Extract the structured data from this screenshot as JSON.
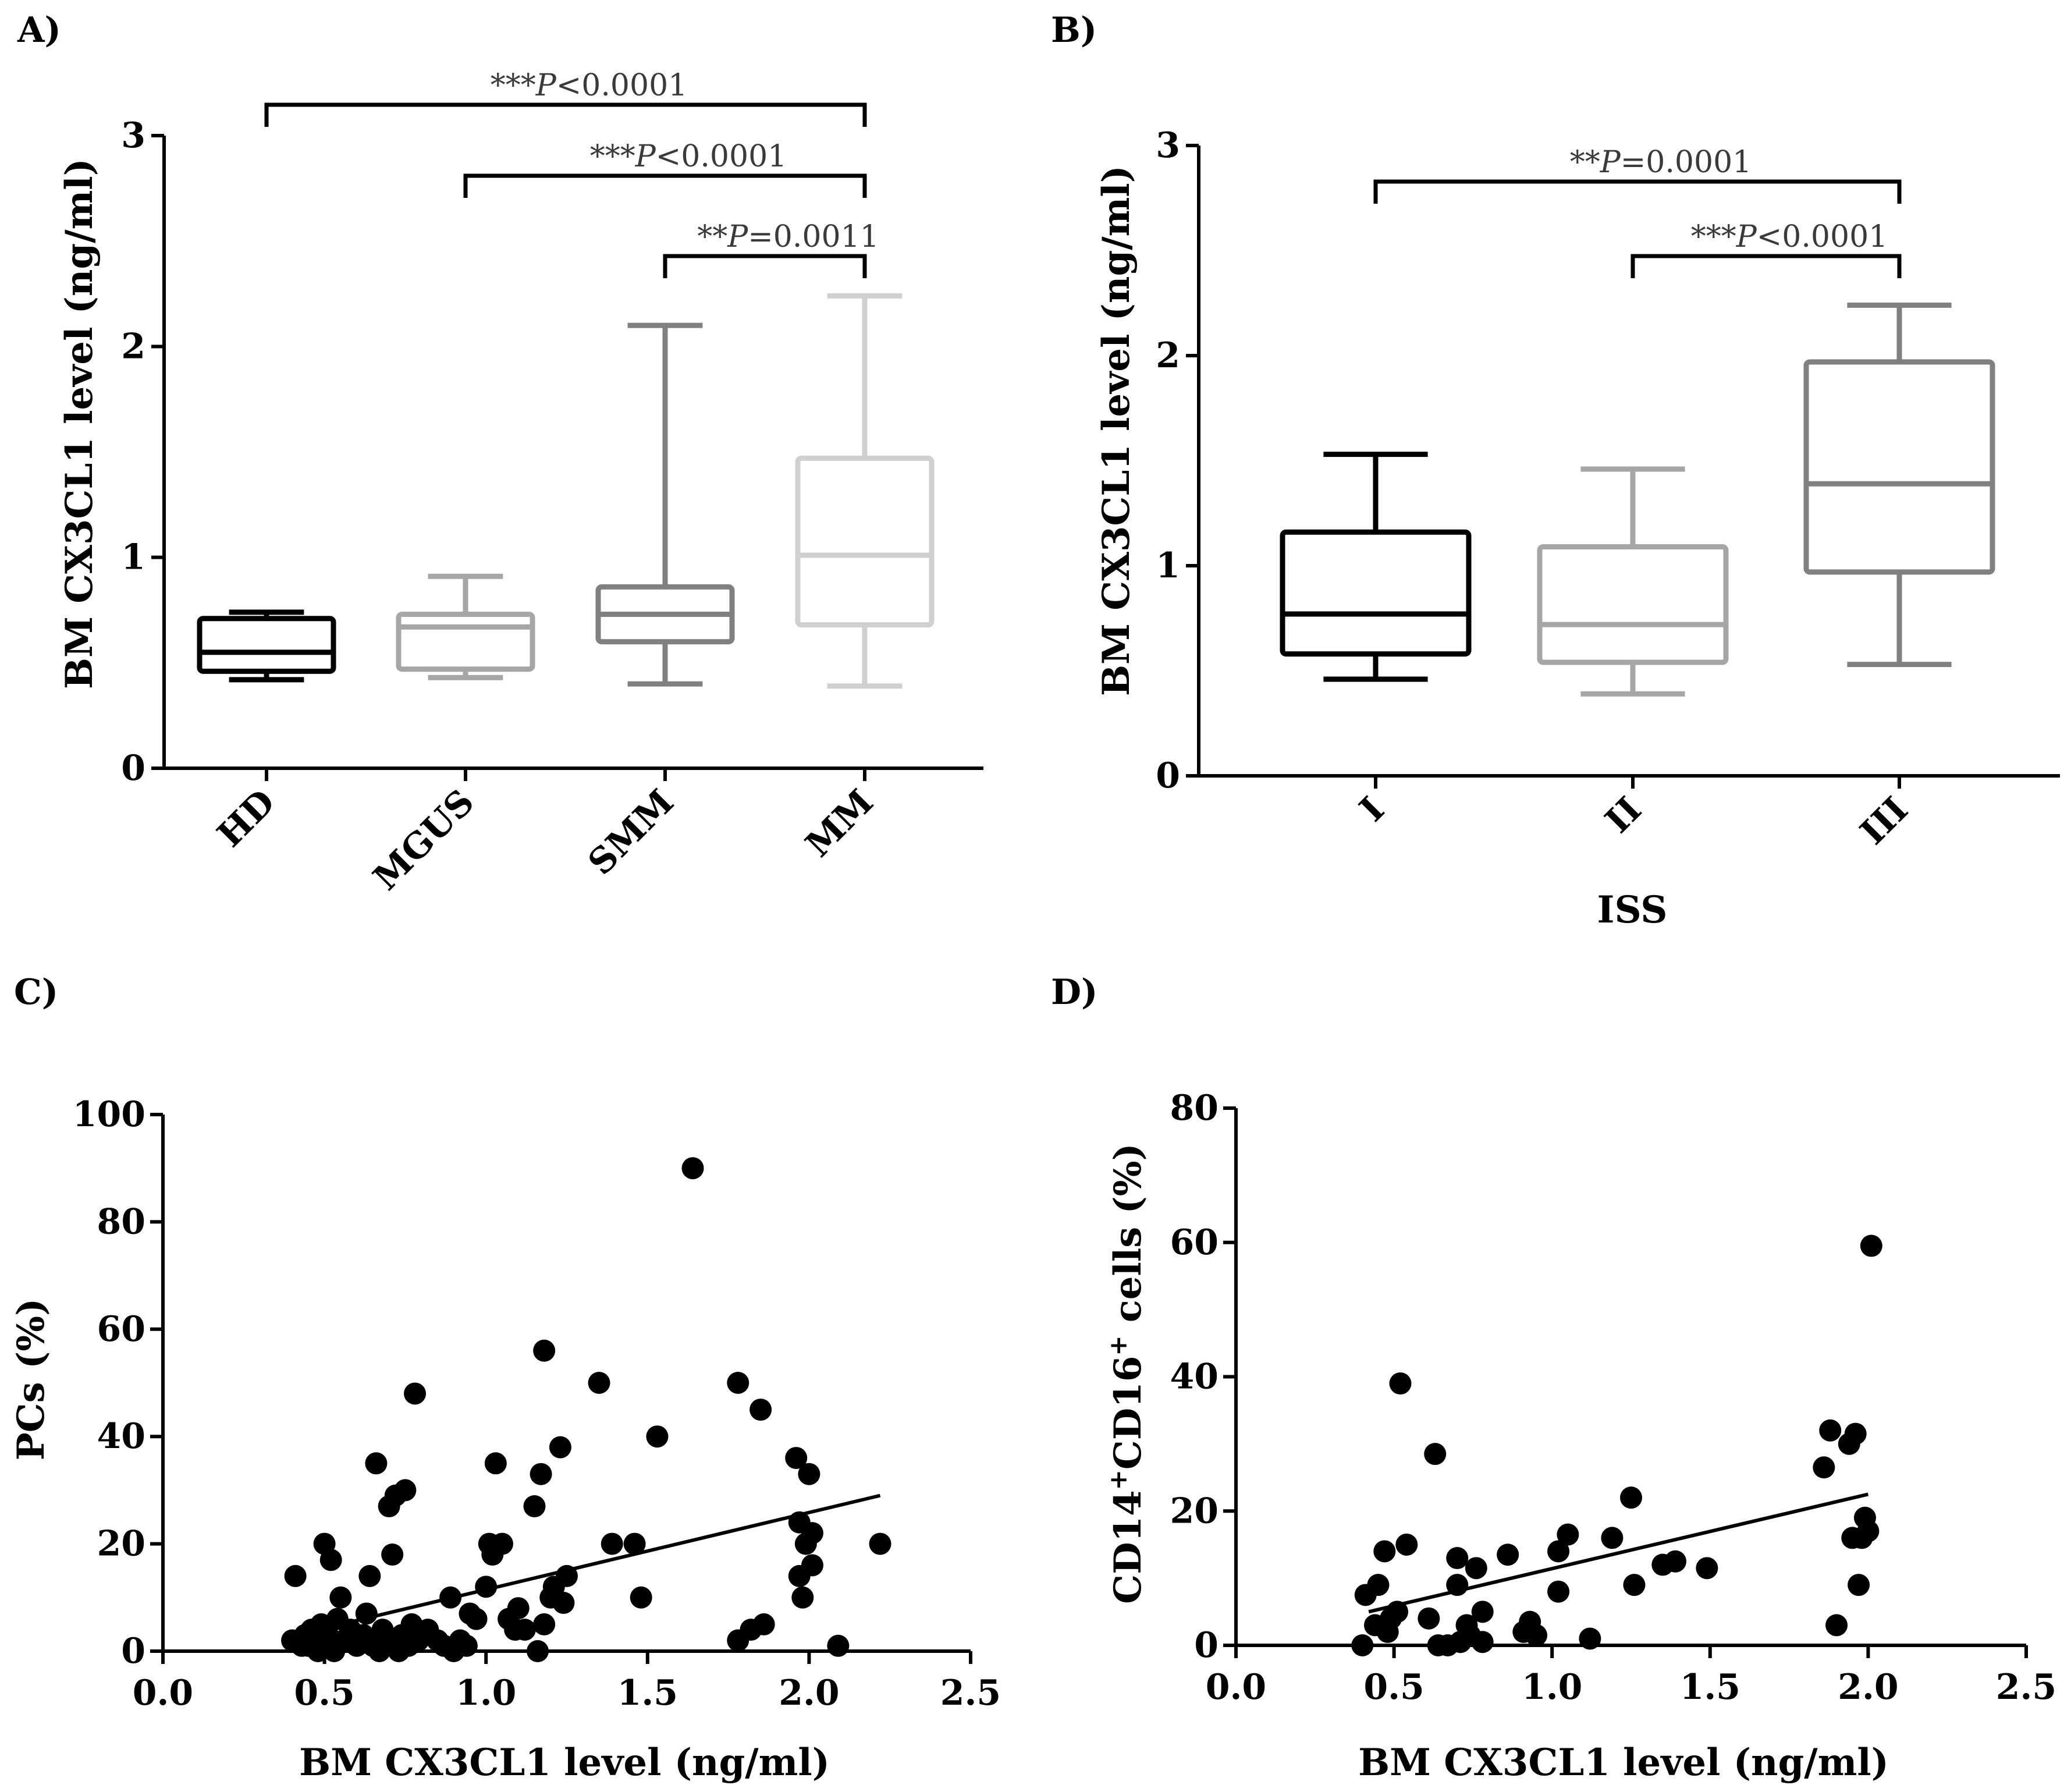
{
  "chart_data": [
    {
      "panel": "A)",
      "type": "box",
      "title": "",
      "xlabel": "",
      "ylabel": "BM CX3CL1 level (ng/ml)",
      "ylim": [
        0,
        3
      ],
      "yticks": [
        "0",
        "1",
        "2",
        "3"
      ],
      "categories": [
        "HD",
        "MGUS",
        "SMM",
        "MM"
      ],
      "boxes": [
        {
          "name": "HD",
          "min": 0.42,
          "q1": 0.46,
          "median": 0.55,
          "q3": 0.71,
          "max": 0.74,
          "color": "#000000"
        },
        {
          "name": "MGUS",
          "min": 0.43,
          "q1": 0.47,
          "median": 0.67,
          "q3": 0.73,
          "max": 0.91,
          "color": "#a6a6a6"
        },
        {
          "name": "SMM",
          "min": 0.4,
          "q1": 0.6,
          "median": 0.73,
          "q3": 0.86,
          "max": 2.1,
          "color": "#808080"
        },
        {
          "name": "MM",
          "min": 0.39,
          "q1": 0.68,
          "median": 1.01,
          "q3": 1.47,
          "max": 2.24,
          "color": "#d0d0d0"
        }
      ],
      "comparisons": [
        {
          "from": "HD",
          "to": "MM",
          "stars": "***",
          "p": "P",
          "rest": "<0.0001"
        },
        {
          "from": "MGUS",
          "to": "MM",
          "stars": "***",
          "p": "P",
          "rest": "<0.0001"
        },
        {
          "from": "SMM",
          "to": "MM",
          "stars": "**",
          "p": "P",
          "rest": "=0.0011"
        }
      ]
    },
    {
      "panel": "B)",
      "type": "box",
      "title": "",
      "xlabel": "ISS",
      "ylabel": "BM CX3CL1 level (ng/ml)",
      "ylim": [
        0,
        3
      ],
      "yticks": [
        "0",
        "1",
        "2",
        "3"
      ],
      "categories": [
        "I",
        "II",
        "III"
      ],
      "boxes": [
        {
          "name": "I",
          "min": 0.46,
          "q1": 0.58,
          "median": 0.77,
          "q3": 1.16,
          "max": 1.53,
          "color": "#000000"
        },
        {
          "name": "II",
          "min": 0.39,
          "q1": 0.54,
          "median": 0.72,
          "q3": 1.09,
          "max": 1.46,
          "color": "#a6a6a6"
        },
        {
          "name": "III",
          "min": 0.53,
          "q1": 0.97,
          "median": 1.39,
          "q3": 1.97,
          "max": 2.24,
          "color": "#808080"
        }
      ],
      "comparisons": [
        {
          "from": "I",
          "to": "III",
          "stars": "**",
          "p": "P",
          "rest": "=0.0001"
        },
        {
          "from": "II",
          "to": "III",
          "stars": "***",
          "p": "P",
          "rest": "<0.0001"
        }
      ]
    },
    {
      "panel": "C)",
      "type": "scatter",
      "title": "",
      "xlabel": "BM CX3CL1 level (ng/ml)",
      "ylabel": "PCs (%)",
      "xlim": [
        0,
        2.5
      ],
      "ylim": [
        0,
        100
      ],
      "xticks": [
        "0.0",
        "0.5",
        "1.0",
        "1.5",
        "2.0",
        "2.5"
      ],
      "yticks": [
        "0",
        "20",
        "40",
        "60",
        "80",
        "100"
      ],
      "trendline": {
        "x": [
          0.55,
          2.22
        ],
        "y": [
          5,
          29
        ]
      },
      "points": [
        [
          0.41,
          14
        ],
        [
          0.4,
          2
        ],
        [
          0.43,
          1
        ],
        [
          0.44,
          3
        ],
        [
          0.45,
          1
        ],
        [
          0.46,
          4
        ],
        [
          0.47,
          2
        ],
        [
          0.48,
          0
        ],
        [
          0.49,
          5
        ],
        [
          0.5,
          20
        ],
        [
          0.5,
          1
        ],
        [
          0.51,
          3
        ],
        [
          0.52,
          17
        ],
        [
          0.53,
          0
        ],
        [
          0.54,
          6
        ],
        [
          0.55,
          10
        ],
        [
          0.56,
          2
        ],
        [
          0.58,
          4
        ],
        [
          0.6,
          1
        ],
        [
          0.62,
          3
        ],
        [
          0.63,
          7
        ],
        [
          0.64,
          14
        ],
        [
          0.65,
          1
        ],
        [
          0.66,
          35
        ],
        [
          0.67,
          0
        ],
        [
          0.68,
          4
        ],
        [
          0.69,
          2
        ],
        [
          0.7,
          27
        ],
        [
          0.71,
          18
        ],
        [
          0.72,
          29
        ],
        [
          0.73,
          0
        ],
        [
          0.74,
          3
        ],
        [
          0.75,
          30
        ],
        [
          0.76,
          1
        ],
        [
          0.77,
          5
        ],
        [
          0.78,
          48
        ],
        [
          0.79,
          2
        ],
        [
          0.8,
          3
        ],
        [
          0.82,
          4
        ],
        [
          0.85,
          2
        ],
        [
          0.87,
          1
        ],
        [
          0.89,
          10
        ],
        [
          0.9,
          0
        ],
        [
          0.92,
          2
        ],
        [
          0.94,
          1
        ],
        [
          0.95,
          7
        ],
        [
          0.97,
          6
        ],
        [
          1.0,
          12
        ],
        [
          1.01,
          20
        ],
        [
          1.02,
          18
        ],
        [
          1.03,
          35
        ],
        [
          1.05,
          20
        ],
        [
          1.07,
          6
        ],
        [
          1.09,
          4
        ],
        [
          1.1,
          8
        ],
        [
          1.12,
          4
        ],
        [
          1.15,
          27
        ],
        [
          1.16,
          0
        ],
        [
          1.17,
          33
        ],
        [
          1.18,
          5
        ],
        [
          1.18,
          56
        ],
        [
          1.2,
          10
        ],
        [
          1.21,
          12
        ],
        [
          1.23,
          38
        ],
        [
          1.24,
          9
        ],
        [
          1.25,
          14
        ],
        [
          1.35,
          50
        ],
        [
          1.39,
          20
        ],
        [
          1.46,
          20
        ],
        [
          1.48,
          10
        ],
        [
          1.53,
          40
        ],
        [
          1.64,
          90
        ],
        [
          1.78,
          2
        ],
        [
          1.78,
          50
        ],
        [
          1.82,
          4
        ],
        [
          1.85,
          45
        ],
        [
          1.86,
          5
        ],
        [
          1.96,
          36
        ],
        [
          1.97,
          14
        ],
        [
          1.97,
          24
        ],
        [
          1.98,
          10
        ],
        [
          1.99,
          20
        ],
        [
          2.0,
          33
        ],
        [
          2.01,
          16
        ],
        [
          2.01,
          22
        ],
        [
          2.09,
          1
        ],
        [
          2.22,
          20
        ]
      ]
    },
    {
      "panel": "D)",
      "type": "scatter",
      "title": "",
      "xlabel": "BM CX3CL1 level (ng/ml)",
      "ylabel": "CD14+CD16+ cells (%)",
      "ylabel_parts": {
        "a": "CD14",
        "sup1": "+",
        "b": "CD16",
        "sup2": "+",
        "c": " cells (%)"
      },
      "xlim": [
        0,
        2.5
      ],
      "ylim": [
        0,
        80
      ],
      "xticks": [
        "0.0",
        "0.5",
        "1.0",
        "1.5",
        "2.0",
        "2.5"
      ],
      "yticks": [
        "0",
        "20",
        "40",
        "60",
        "80"
      ],
      "trendline": {
        "x": [
          0.42,
          2.0
        ],
        "y": [
          5,
          22.5
        ]
      },
      "points": [
        [
          0.4,
          0
        ],
        [
          0.41,
          7.5
        ],
        [
          0.44,
          3
        ],
        [
          0.45,
          9
        ],
        [
          0.47,
          14
        ],
        [
          0.48,
          2
        ],
        [
          0.49,
          4
        ],
        [
          0.51,
          5
        ],
        [
          0.52,
          39
        ],
        [
          0.54,
          15
        ],
        [
          0.61,
          4
        ],
        [
          0.63,
          28.5
        ],
        [
          0.64,
          0
        ],
        [
          0.67,
          0
        ],
        [
          0.7,
          13
        ],
        [
          0.7,
          9
        ],
        [
          0.71,
          0.5
        ],
        [
          0.73,
          3
        ],
        [
          0.74,
          1.5
        ],
        [
          0.76,
          11.5
        ],
        [
          0.78,
          5
        ],
        [
          0.78,
          0.5
        ],
        [
          0.86,
          13.5
        ],
        [
          0.91,
          2
        ],
        [
          0.93,
          3.5
        ],
        [
          0.95,
          1.5
        ],
        [
          1.02,
          8
        ],
        [
          1.02,
          14
        ],
        [
          1.05,
          16.5
        ],
        [
          1.12,
          1
        ],
        [
          1.19,
          16
        ],
        [
          1.25,
          22
        ],
        [
          1.26,
          9
        ],
        [
          1.35,
          12
        ],
        [
          1.39,
          12.5
        ],
        [
          1.49,
          11.5
        ],
        [
          1.86,
          26.5
        ],
        [
          1.88,
          32
        ],
        [
          1.9,
          3
        ],
        [
          1.94,
          30
        ],
        [
          1.95,
          16
        ],
        [
          1.96,
          31.5
        ],
        [
          1.97,
          9
        ],
        [
          1.98,
          16
        ],
        [
          1.99,
          19
        ],
        [
          2.0,
          17
        ],
        [
          2.01,
          59.5
        ]
      ]
    }
  ]
}
